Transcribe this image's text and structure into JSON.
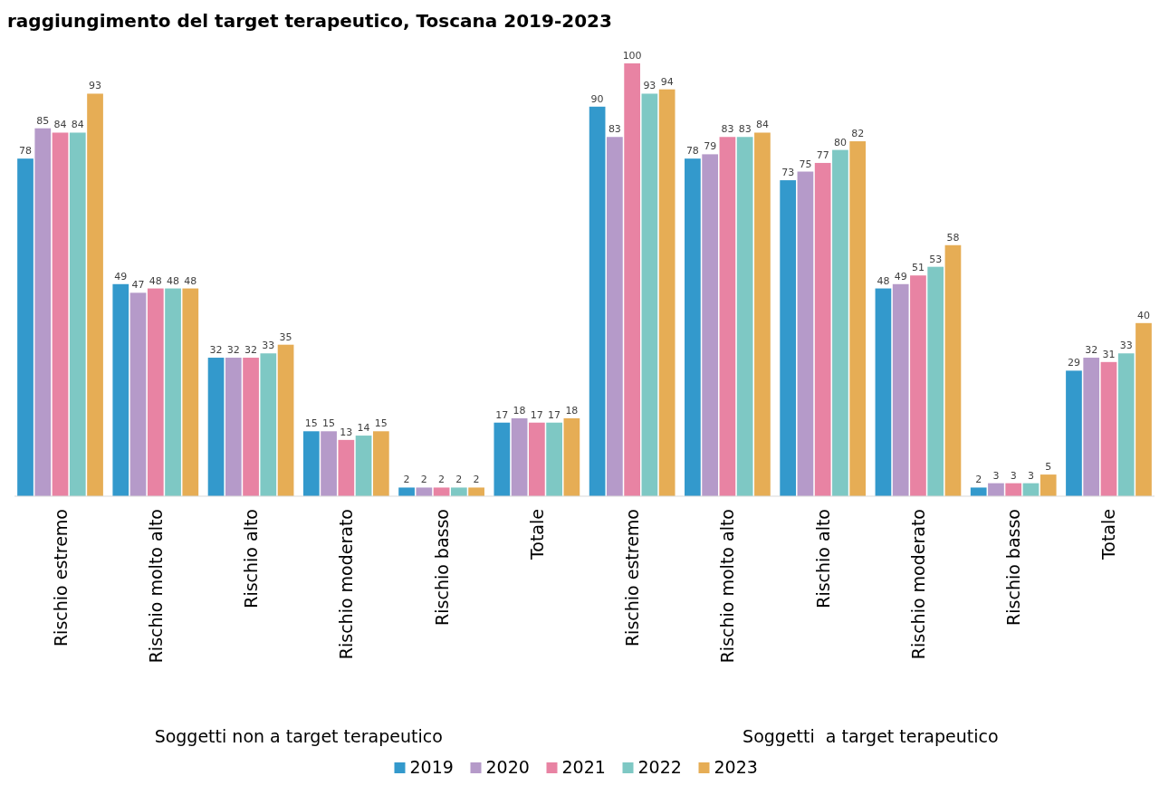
{
  "chart_data": {
    "type": "bar",
    "title": "raggiungimento del target terapeutico, Toscana 2019-2023",
    "categories": [
      "Rischio estremo",
      "Rischio molto alto",
      "Rischio alto",
      "Rischio moderato",
      "Rischio basso",
      "Totale",
      "Rischio estremo",
      "Rischio molto alto",
      "Rischio alto",
      "Rischio moderato",
      "Rischio basso",
      "Totale"
    ],
    "series": [
      {
        "name": "2019",
        "color": "#3399cc",
        "values": [
          78,
          49,
          32,
          15,
          2,
          17,
          90,
          78,
          73,
          48,
          2,
          29
        ]
      },
      {
        "name": "2020",
        "color": "#b59ac9",
        "values": [
          85,
          47,
          32,
          15,
          2,
          18,
          83,
          79,
          75,
          49,
          3,
          32
        ]
      },
      {
        "name": "2021",
        "color": "#e883a3",
        "values": [
          84,
          48,
          32,
          13,
          2,
          17,
          100,
          83,
          77,
          51,
          3,
          31
        ]
      },
      {
        "name": "2022",
        "color": "#7ec8c4",
        "values": [
          84,
          48,
          33,
          14,
          2,
          17,
          93,
          83,
          80,
          53,
          3,
          33
        ]
      },
      {
        "name": "2023",
        "color": "#e6ad55",
        "values": [
          93,
          48,
          35,
          15,
          2,
          18,
          94,
          84,
          82,
          58,
          5,
          40
        ]
      }
    ],
    "annotations": [
      "Soggetti non a target terapeutico",
      "Soggetti  a target terapeutico"
    ],
    "data_labels": true,
    "legend": "bottom",
    "grid": false
  }
}
